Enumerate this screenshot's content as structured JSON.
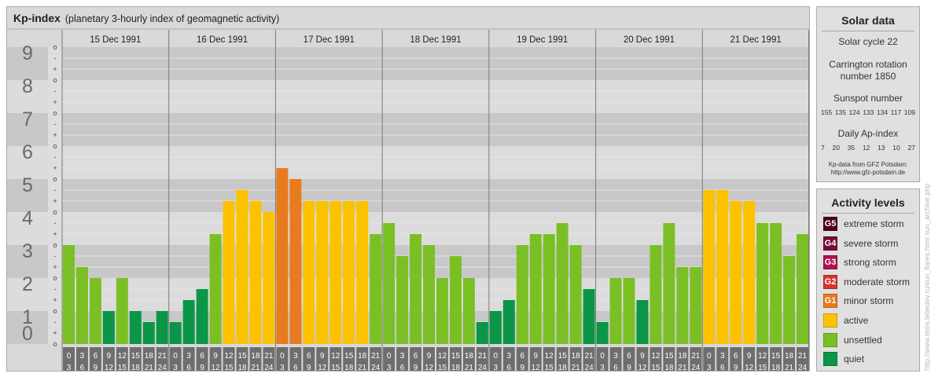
{
  "header": {
    "title": "Kp-index",
    "subtitle": "(planetary 3-hourly index of geomagnetic activity)"
  },
  "chart_data": {
    "type": "bar",
    "title": "Kp-index",
    "ylim": [
      0,
      9
    ],
    "y_ticks": [
      "0",
      "1",
      "2",
      "3",
      "4",
      "5",
      "6",
      "7",
      "8",
      "9"
    ],
    "minor_tick_labels": [
      "o",
      "+",
      "-",
      "o",
      "+",
      "-",
      "o",
      "+",
      "-",
      "o",
      "+",
      "-",
      "o",
      "+",
      "-",
      "o",
      "+",
      "-",
      "o",
      "+",
      "-",
      "o",
      "+",
      "-",
      "o",
      "+",
      "-",
      "o"
    ],
    "days": [
      "15 Dec 1991",
      "16 Dec 1991",
      "17 Dec 1991",
      "18 Dec 1991",
      "19 Dec 1991",
      "20 Dec 1991",
      "21 Dec 1991"
    ],
    "interval_start_labels": [
      "0",
      "3",
      "6",
      "9",
      "12",
      "15",
      "18",
      "21"
    ],
    "interval_end_labels": [
      "3",
      "6",
      "9",
      "12",
      "15",
      "18",
      "21",
      "24"
    ],
    "values": [
      [
        3.0,
        2.333,
        2.0,
        1.0,
        2.0,
        1.0,
        0.667,
        1.0
      ],
      [
        0.667,
        1.333,
        1.667,
        3.333,
        4.333,
        4.667,
        4.333,
        4.0
      ],
      [
        5.333,
        5.0,
        4.333,
        4.333,
        4.333,
        4.333,
        4.333,
        3.333
      ],
      [
        3.667,
        2.667,
        3.333,
        3.0,
        2.0,
        2.667,
        2.0,
        0.667
      ],
      [
        1.0,
        1.333,
        3.0,
        3.333,
        3.333,
        3.667,
        3.0,
        1.667
      ],
      [
        0.667,
        2.0,
        2.0,
        1.333,
        3.0,
        3.667,
        2.333,
        2.333
      ],
      [
        4.667,
        4.667,
        4.333,
        4.333,
        3.667,
        3.667,
        2.667,
        3.333
      ]
    ]
  },
  "solar": {
    "title": "Solar data",
    "cycle": "Solar cycle 22",
    "carrington_line1": "Carrington rotation",
    "carrington_line2": "number 1850",
    "sunspot_title": "Sunspot number",
    "sunspots": [
      "155",
      "135",
      "124",
      "133",
      "134",
      "117",
      "109"
    ],
    "ap_title": "Daily Ap-index",
    "ap": [
      "7",
      "20",
      "35",
      "12",
      "13",
      "10",
      "27"
    ],
    "source_line1": "Kp-data from GFZ Potsdam:",
    "source_line2": "http://www.gfz-potsdam.de"
  },
  "levels": {
    "title": "Activity levels",
    "items": [
      {
        "code": "G5",
        "label": "extreme storm",
        "color": "#4d0019"
      },
      {
        "code": "G4",
        "label": "severe storm",
        "color": "#7a0a3c"
      },
      {
        "code": "G3",
        "label": "strong storm",
        "color": "#b0104f"
      },
      {
        "code": "G2",
        "label": "moderate storm",
        "color": "#d6362a"
      },
      {
        "code": "G1",
        "label": "minor storm",
        "color": "#e87b1e"
      },
      {
        "code": "",
        "label": "active",
        "color": "#fcc200"
      },
      {
        "code": "",
        "label": "unsettled",
        "color": "#7ac025"
      },
      {
        "code": "",
        "label": "quiet",
        "color": "#0a9646"
      }
    ]
  },
  "colors": {
    "quiet": "#0a9646",
    "unsettled": "#7ac025",
    "active": "#fcc200",
    "minor_storm": "#e87b1e",
    "band_dark": "#c8c8c8",
    "band_light": "#dcdcdc",
    "timebox": "#6e6e6e"
  },
  "credit": "http://www.tesis.lebedev.ru/sun_flares.html  sun_archive.php"
}
